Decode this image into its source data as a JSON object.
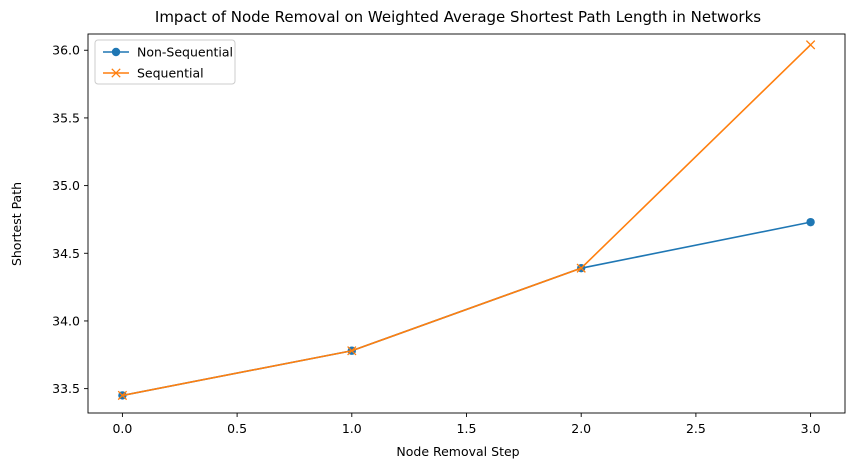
{
  "chart_data": {
    "type": "line",
    "title": "Impact of Node Removal on Weighted Average Shortest Path Length in Networks",
    "xlabel": "Node Removal Step",
    "ylabel": "Shortest Path",
    "x": [
      0,
      1,
      2,
      3
    ],
    "xlim": [
      -0.15,
      3.15
    ],
    "ylim": [
      33.32,
      36.12
    ],
    "xticks": [
      "0.0",
      "0.5",
      "1.0",
      "1.5",
      "2.0",
      "2.5",
      "3.0"
    ],
    "yticks": [
      "33.5",
      "34.0",
      "34.5",
      "35.0",
      "35.5",
      "36.0"
    ],
    "grid": false,
    "legend_position": "top-left",
    "series": [
      {
        "name": "Non-Sequential",
        "marker": "circle",
        "color": "#1f77b4",
        "values": [
          33.45,
          33.78,
          34.39,
          34.73
        ]
      },
      {
        "name": "Sequential",
        "marker": "x",
        "color": "#ff7f0e",
        "values": [
          33.45,
          33.78,
          34.39,
          36.04
        ]
      }
    ]
  }
}
